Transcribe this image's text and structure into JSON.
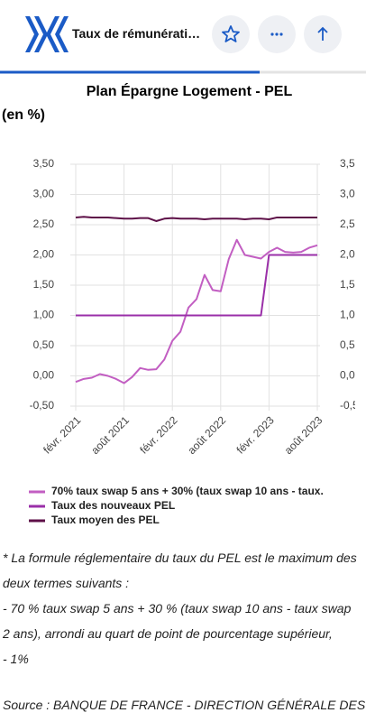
{
  "header": {
    "title": "Taux de rémunérati…"
  },
  "chart_data": {
    "type": "line",
    "title": "Plan Épargne Logement - PEL",
    "y_label": "(en %)",
    "categories": [
      "févr. 2021",
      null,
      null,
      null,
      null,
      null,
      "août 2021",
      null,
      null,
      null,
      null,
      null,
      "févr. 2022",
      null,
      null,
      null,
      null,
      null,
      "août 2022",
      null,
      null,
      null,
      null,
      null,
      "févr. 2023",
      null,
      null,
      null,
      null,
      null,
      "août 2023"
    ],
    "series": [
      {
        "name": "70% taux swap 5 ans + 30% (taux swap 10 ans - taux.",
        "color": "#c25ec2",
        "values": [
          -0.1,
          -0.05,
          -0.03,
          0.03,
          0.0,
          -0.05,
          -0.12,
          -0.02,
          0.13,
          0.1,
          0.11,
          0.27,
          0.58,
          0.73,
          1.13,
          1.27,
          1.67,
          1.42,
          1.4,
          1.93,
          2.25,
          2.0,
          1.97,
          1.94,
          2.05,
          2.12,
          2.05,
          2.04,
          2.05,
          2.12,
          2.16
        ]
      },
      {
        "name": "Taux des nouveaux PEL",
        "color": "#9a2fa8",
        "values": [
          1,
          1,
          1,
          1,
          1,
          1,
          1,
          1,
          1,
          1,
          1,
          1,
          1,
          1,
          1,
          1,
          1,
          1,
          1,
          1,
          1,
          1,
          1,
          1,
          2,
          2,
          2,
          2,
          2,
          2,
          2
        ]
      },
      {
        "name": "Taux moyen des PEL",
        "color": "#5e1048",
        "values": [
          2.62,
          2.63,
          2.62,
          2.62,
          2.62,
          2.61,
          2.6,
          2.6,
          2.61,
          2.61,
          2.56,
          2.6,
          2.61,
          2.6,
          2.6,
          2.6,
          2.59,
          2.6,
          2.6,
          2.6,
          2.6,
          2.59,
          2.6,
          2.6,
          2.59,
          2.62,
          2.62,
          2.62,
          2.62,
          2.62,
          2.62
        ]
      }
    ],
    "ylim": [
      -0.5,
      3.5
    ],
    "yticks": [
      {
        "value": -0.5,
        "label": "-0,50"
      },
      {
        "value": 0,
        "label": "0,00"
      },
      {
        "value": 0.5,
        "label": "0,50"
      },
      {
        "value": 1,
        "label": "1,00"
      },
      {
        "value": 1.5,
        "label": "1,50"
      },
      {
        "value": 2,
        "label": "2,00"
      },
      {
        "value": 2.5,
        "label": "2,50"
      },
      {
        "value": 3,
        "label": "3,00"
      },
      {
        "value": 3.5,
        "label": "3,50"
      }
    ],
    "grid": true
  },
  "notes": [
    "* La formule réglementaire du taux du PEL est le maximum des deux termes suivants :",
    "- 70 % taux swap 5 ans + 30 % (taux swap 10 ans - taux swap 2 ans), arrondi au quart de point de pourcentage supérieur,",
    "- 1%"
  ],
  "source": "Source : BANQUE DE FRANCE - DIRECTION GÉNÉRALE DES"
}
